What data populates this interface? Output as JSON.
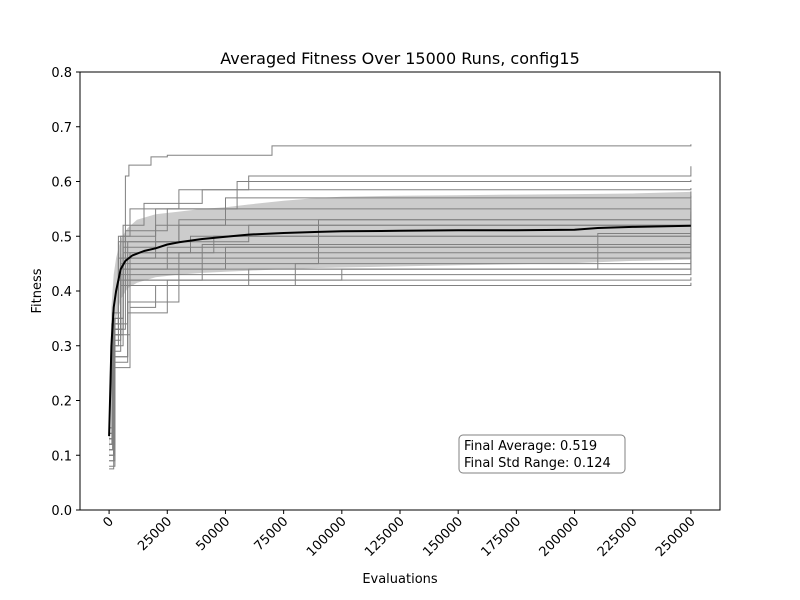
{
  "chart_data": {
    "type": "line",
    "title": "Averaged Fitness Over 15000 Runs, config15",
    "xlabel": "Evaluations",
    "ylabel": "Fitness",
    "xlim": [
      -12500,
      262500
    ],
    "ylim": [
      0.0,
      0.8
    ],
    "xticks": [
      0,
      25000,
      50000,
      75000,
      100000,
      125000,
      150000,
      175000,
      200000,
      225000,
      250000
    ],
    "xtick_labels": [
      "0",
      "25000",
      "50000",
      "75000",
      "100000",
      "125000",
      "150000",
      "175000",
      "200000",
      "225000",
      "250000"
    ],
    "xtick_rotation": 45,
    "yticks": [
      0.0,
      0.1,
      0.2,
      0.3,
      0.4,
      0.5,
      0.6,
      0.7,
      0.8
    ],
    "ytick_labels": [
      "0.0",
      "0.1",
      "0.2",
      "0.3",
      "0.4",
      "0.5",
      "0.6",
      "0.7",
      "0.8"
    ],
    "grid": false,
    "colors": {
      "average": "#000000",
      "runs": "#808080",
      "std_band": "#cccccc",
      "annotation_border": "#808080"
    },
    "std_band": {
      "x": [
        0,
        500,
        1000,
        2000,
        3000,
        5000,
        8000,
        12000,
        20000,
        30000,
        40000,
        50000,
        60000,
        75000,
        90000,
        100000,
        125000,
        150000,
        175000,
        200000,
        225000,
        250000
      ],
      "lower": [
        0.09,
        0.16,
        0.24,
        0.31,
        0.35,
        0.385,
        0.405,
        0.415,
        0.425,
        0.43,
        0.433,
        0.435,
        0.437,
        0.44,
        0.442,
        0.443,
        0.445,
        0.447,
        0.449,
        0.451,
        0.455,
        0.457
      ],
      "upper": [
        0.18,
        0.28,
        0.37,
        0.43,
        0.46,
        0.495,
        0.515,
        0.53,
        0.54,
        0.545,
        0.55,
        0.553,
        0.558,
        0.565,
        0.57,
        0.572,
        0.574,
        0.575,
        0.576,
        0.577,
        0.578,
        0.581
      ]
    },
    "average": {
      "name": "",
      "x": [
        0,
        500,
        1000,
        2000,
        3000,
        5000,
        7000,
        10000,
        15000,
        20000,
        25000,
        30000,
        40000,
        50000,
        60000,
        75000,
        90000,
        100000,
        125000,
        150000,
        175000,
        200000,
        210000,
        225000,
        250000
      ],
      "y": [
        0.135,
        0.22,
        0.3,
        0.37,
        0.4,
        0.44,
        0.455,
        0.465,
        0.473,
        0.478,
        0.485,
        0.489,
        0.495,
        0.499,
        0.503,
        0.506,
        0.508,
        0.509,
        0.51,
        0.511,
        0.511,
        0.512,
        0.515,
        0.517,
        0.519
      ]
    },
    "runs": [
      {
        "x": [
          0,
          1500,
          4000,
          7000,
          8500,
          18000,
          25000,
          60000,
          70000,
          250000
        ],
        "y": [
          0.15,
          0.34,
          0.49,
          0.61,
          0.63,
          0.645,
          0.648,
          0.648,
          0.665,
          0.668
        ]
      },
      {
        "x": [
          0,
          1200,
          4000,
          9000,
          30000,
          60000,
          250000
        ],
        "y": [
          0.12,
          0.34,
          0.5,
          0.55,
          0.585,
          0.61,
          0.628
        ]
      },
      {
        "x": [
          0,
          1500,
          5000,
          20000,
          55000,
          250000
        ],
        "y": [
          0.13,
          0.36,
          0.5,
          0.55,
          0.6,
          0.603
        ]
      },
      {
        "x": [
          0,
          2000,
          6000,
          15000,
          40000,
          250000
        ],
        "y": [
          0.14,
          0.35,
          0.52,
          0.56,
          0.585,
          0.588
        ]
      },
      {
        "x": [
          0,
          2000,
          6000,
          20000,
          50000,
          250000
        ],
        "y": [
          0.12,
          0.33,
          0.48,
          0.52,
          0.57,
          0.582
        ]
      },
      {
        "x": [
          0,
          1800,
          7000,
          25000,
          250000
        ],
        "y": [
          0.11,
          0.33,
          0.51,
          0.55,
          0.574
        ]
      },
      {
        "x": [
          0,
          2500,
          8000,
          30000,
          250000
        ],
        "y": [
          0.13,
          0.34,
          0.49,
          0.53,
          0.566
        ]
      },
      {
        "x": [
          0,
          2000,
          9000,
          45000,
          250000
        ],
        "y": [
          0.1,
          0.32,
          0.47,
          0.5,
          0.55
        ]
      },
      {
        "x": [
          0,
          2000,
          6000,
          30000,
          250000
        ],
        "y": [
          0.12,
          0.35,
          0.49,
          0.52,
          0.54
        ]
      },
      {
        "x": [
          0,
          1500,
          4000,
          20000,
          60000,
          250000
        ],
        "y": [
          0.11,
          0.33,
          0.46,
          0.49,
          0.52,
          0.53
        ]
      },
      {
        "x": [
          0,
          2500,
          6000,
          35000,
          250000
        ],
        "y": [
          0.14,
          0.35,
          0.47,
          0.5,
          0.52
        ]
      },
      {
        "x": [
          0,
          2000,
          5000,
          25000,
          250000
        ],
        "y": [
          0.13,
          0.32,
          0.44,
          0.48,
          0.51
        ]
      },
      {
        "x": [
          0,
          2500,
          5000,
          40000,
          250000
        ],
        "y": [
          0.12,
          0.31,
          0.45,
          0.485,
          0.505
        ]
      },
      {
        "x": [
          0,
          2000,
          6000,
          50000,
          250000
        ],
        "y": [
          0.1,
          0.3,
          0.44,
          0.48,
          0.495
        ]
      },
      {
        "x": [
          0,
          2500,
          5000,
          30000,
          250000
        ],
        "y": [
          0.13,
          0.34,
          0.46,
          0.47,
          0.49
        ]
      },
      {
        "x": [
          0,
          2000,
          5000,
          30000,
          250000
        ],
        "y": [
          0.11,
          0.32,
          0.43,
          0.46,
          0.48
        ]
      },
      {
        "x": [
          0,
          1500,
          4000,
          40000,
          250000
        ],
        "y": [
          0.12,
          0.3,
          0.42,
          0.45,
          0.47
        ]
      },
      {
        "x": [
          0,
          2000,
          5000,
          60000,
          250000
        ],
        "y": [
          0.09,
          0.29,
          0.41,
          0.44,
          0.465
        ]
      },
      {
        "x": [
          0,
          1500,
          6000,
          80000,
          90000,
          250000
        ],
        "y": [
          0.13,
          0.32,
          0.44,
          0.45,
          0.53,
          0.545
        ]
      },
      {
        "x": [
          0,
          2000,
          6000,
          100000,
          200000,
          210000,
          250000
        ],
        "y": [
          0.14,
          0.33,
          0.42,
          0.44,
          0.44,
          0.505,
          0.515
        ]
      },
      {
        "x": [
          0,
          2000,
          8000,
          80000,
          250000
        ],
        "y": [
          0.1,
          0.28,
          0.41,
          0.44,
          0.455
        ]
      },
      {
        "x": [
          0,
          2500,
          8000,
          30000,
          250000
        ],
        "y": [
          0.08,
          0.27,
          0.38,
          0.43,
          0.44
        ]
      },
      {
        "x": [
          0,
          2000,
          8000,
          25000,
          250000
        ],
        "y": [
          0.075,
          0.28,
          0.36,
          0.42,
          0.425
        ]
      },
      {
        "x": [
          0,
          2500,
          9000,
          20000,
          250000
        ],
        "y": [
          0.09,
          0.26,
          0.37,
          0.41,
          0.415
        ]
      }
    ],
    "annotations": [
      {
        "line1": "Final Average: 0.519",
        "line2": "Final Std Range: 0.124",
        "x": 152000,
        "y": 0.13
      }
    ]
  }
}
